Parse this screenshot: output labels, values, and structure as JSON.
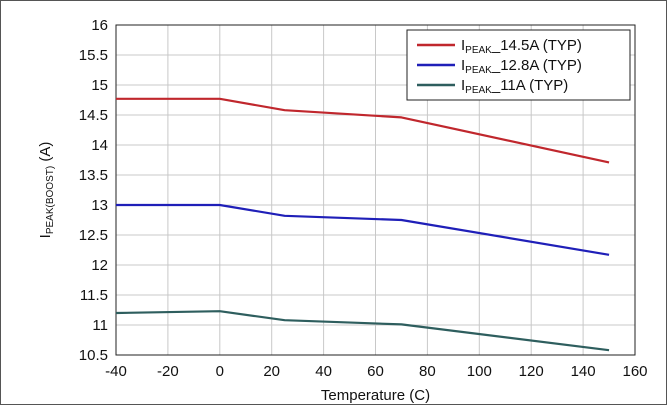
{
  "chart_data": {
    "type": "line",
    "xlabel": "Temperature (C)",
    "ylabel": {
      "main": "I",
      "sub": "PEAK(BOOST)",
      "suffix": " (A)"
    },
    "xlim": [
      -40,
      160
    ],
    "ylim": [
      10.5,
      16
    ],
    "xticks": [
      -40,
      -20,
      0,
      20,
      40,
      60,
      80,
      100,
      120,
      140,
      160
    ],
    "yticks": [
      10.5,
      11,
      11.5,
      12,
      12.5,
      13,
      13.5,
      14,
      14.5,
      15,
      15.5,
      16
    ],
    "grid": true,
    "legend_position": "top-right",
    "series": [
      {
        "name": "I_PEAK_14.5A (TYP)",
        "label_main": "I",
        "label_sub": "PEAK",
        "label_rest": "_14.5A (TYP)",
        "color": "#c0272d",
        "x": [
          -40,
          0,
          25,
          70,
          150
        ],
        "y": [
          14.77,
          14.77,
          14.58,
          14.46,
          13.71
        ]
      },
      {
        "name": "I_PEAK_12.8A (TYP)",
        "label_main": "I",
        "label_sub": "PEAK",
        "label_rest": "_12.8A (TYP)",
        "color": "#1f1fb8",
        "x": [
          -40,
          0,
          25,
          70,
          150
        ],
        "y": [
          13.0,
          13.0,
          12.82,
          12.75,
          12.17
        ]
      },
      {
        "name": "I_PEAK_11A (TYP)",
        "label_main": "I",
        "label_sub": "PEAK",
        "label_rest": "_11A (TYP)",
        "color": "#2e5e5e",
        "x": [
          -40,
          0,
          25,
          70,
          150
        ],
        "y": [
          11.2,
          11.23,
          11.08,
          11.01,
          10.58
        ]
      }
    ]
  }
}
